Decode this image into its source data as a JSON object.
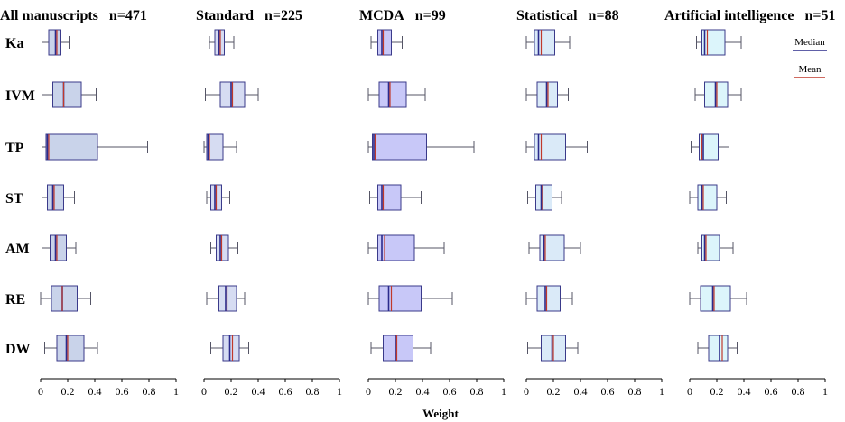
{
  "chart_data": {
    "type": "boxplot",
    "xlabel": "Weight",
    "xlim": [
      0,
      1
    ],
    "xticks": [
      "0",
      "0.2",
      "0.4",
      "0.6",
      "0.8",
      "1"
    ],
    "categories": [
      "Ka",
      "IVM",
      "TP",
      "ST",
      "AM",
      "RE",
      "DW"
    ],
    "legend": {
      "median_label": "Median",
      "mean_label": "Mean",
      "placement": "top-right"
    },
    "colors": {
      "median": "#2b2b8c",
      "mean": "#c0392b",
      "box_stroke": "#3a3a8a",
      "whisker": "#555566"
    },
    "panels": [
      {
        "title": "All manuscripts",
        "n_label": "n=471",
        "box_fill": "#c9d3ea",
        "boxes": [
          {
            "min": 0.01,
            "q1": 0.06,
            "median": 0.11,
            "mean": 0.12,
            "q3": 0.15,
            "max": 0.21
          },
          {
            "min": 0.01,
            "q1": 0.09,
            "median": 0.17,
            "mean": 0.17,
            "q3": 0.3,
            "max": 0.41
          },
          {
            "min": 0.01,
            "q1": 0.04,
            "median": 0.05,
            "mean": 0.06,
            "q3": 0.42,
            "max": 0.79
          },
          {
            "min": 0.01,
            "q1": 0.05,
            "median": 0.09,
            "mean": 0.1,
            "q3": 0.17,
            "max": 0.25
          },
          {
            "min": 0.01,
            "q1": 0.07,
            "median": 0.11,
            "mean": 0.12,
            "q3": 0.19,
            "max": 0.26
          },
          {
            "min": 0.0,
            "q1": 0.08,
            "median": 0.16,
            "mean": 0.16,
            "q3": 0.27,
            "max": 0.37
          },
          {
            "min": 0.03,
            "q1": 0.12,
            "median": 0.19,
            "mean": 0.2,
            "q3": 0.32,
            "max": 0.42
          }
        ]
      },
      {
        "title": "Standard",
        "n_label": "n=225",
        "box_fill": "#d6dcf2",
        "boxes": [
          {
            "min": 0.04,
            "q1": 0.08,
            "median": 0.11,
            "mean": 0.12,
            "q3": 0.15,
            "max": 0.22
          },
          {
            "min": 0.01,
            "q1": 0.12,
            "median": 0.2,
            "mean": 0.21,
            "q3": 0.3,
            "max": 0.4
          },
          {
            "min": 0.0,
            "q1": 0.02,
            "median": 0.03,
            "mean": 0.04,
            "q3": 0.14,
            "max": 0.24
          },
          {
            "min": 0.02,
            "q1": 0.05,
            "median": 0.08,
            "mean": 0.09,
            "q3": 0.13,
            "max": 0.19
          },
          {
            "min": 0.05,
            "q1": 0.09,
            "median": 0.12,
            "mean": 0.13,
            "q3": 0.18,
            "max": 0.25
          },
          {
            "min": 0.02,
            "q1": 0.11,
            "median": 0.16,
            "mean": 0.17,
            "q3": 0.24,
            "max": 0.3
          },
          {
            "min": 0.05,
            "q1": 0.14,
            "median": 0.19,
            "mean": 0.21,
            "q3": 0.26,
            "max": 0.33
          }
        ]
      },
      {
        "title": "MCDA",
        "n_label": "n=99",
        "box_fill": "#c8c8f8",
        "boxes": [
          {
            "min": 0.02,
            "q1": 0.07,
            "median": 0.1,
            "mean": 0.11,
            "q3": 0.17,
            "max": 0.25
          },
          {
            "min": 0.0,
            "q1": 0.08,
            "median": 0.15,
            "mean": 0.16,
            "q3": 0.28,
            "max": 0.42
          },
          {
            "min": 0.0,
            "q1": 0.03,
            "median": 0.04,
            "mean": 0.05,
            "q3": 0.43,
            "max": 0.78
          },
          {
            "min": 0.01,
            "q1": 0.07,
            "median": 0.1,
            "mean": 0.11,
            "q3": 0.24,
            "max": 0.39
          },
          {
            "min": 0.0,
            "q1": 0.07,
            "median": 0.1,
            "mean": 0.12,
            "q3": 0.34,
            "max": 0.56
          },
          {
            "min": 0.0,
            "q1": 0.08,
            "median": 0.15,
            "mean": 0.17,
            "q3": 0.39,
            "max": 0.62
          },
          {
            "min": 0.02,
            "q1": 0.11,
            "median": 0.2,
            "mean": 0.21,
            "q3": 0.33,
            "max": 0.46
          }
        ]
      },
      {
        "title": "Statistical",
        "n_label": "n=88",
        "box_fill": "#daeaf8",
        "boxes": [
          {
            "min": 0.0,
            "q1": 0.06,
            "median": 0.09,
            "mean": 0.11,
            "q3": 0.21,
            "max": 0.32
          },
          {
            "min": 0.0,
            "q1": 0.08,
            "median": 0.15,
            "mean": 0.16,
            "q3": 0.23,
            "max": 0.31
          },
          {
            "min": 0.0,
            "q1": 0.06,
            "median": 0.09,
            "mean": 0.11,
            "q3": 0.29,
            "max": 0.45
          },
          {
            "min": 0.01,
            "q1": 0.07,
            "median": 0.11,
            "mean": 0.12,
            "q3": 0.19,
            "max": 0.26
          },
          {
            "min": 0.02,
            "q1": 0.1,
            "median": 0.13,
            "mean": 0.14,
            "q3": 0.28,
            "max": 0.4
          },
          {
            "min": 0.0,
            "q1": 0.08,
            "median": 0.14,
            "mean": 0.15,
            "q3": 0.25,
            "max": 0.34
          },
          {
            "min": 0.01,
            "q1": 0.11,
            "median": 0.19,
            "mean": 0.2,
            "q3": 0.29,
            "max": 0.38
          }
        ]
      },
      {
        "title": "Artificial intelligence",
        "n_label": "n=51",
        "box_fill": "#dcf5fb",
        "boxes": [
          {
            "min": 0.05,
            "q1": 0.09,
            "median": 0.11,
            "mean": 0.13,
            "q3": 0.26,
            "max": 0.38
          },
          {
            "min": 0.04,
            "q1": 0.11,
            "median": 0.19,
            "mean": 0.2,
            "q3": 0.28,
            "max": 0.38
          },
          {
            "min": 0.01,
            "q1": 0.07,
            "median": 0.1,
            "mean": 0.09,
            "q3": 0.21,
            "max": 0.29
          },
          {
            "min": 0.0,
            "q1": 0.06,
            "median": 0.09,
            "mean": 0.1,
            "q3": 0.2,
            "max": 0.27
          },
          {
            "min": 0.06,
            "q1": 0.09,
            "median": 0.11,
            "mean": 0.12,
            "q3": 0.22,
            "max": 0.32
          },
          {
            "min": 0.0,
            "q1": 0.08,
            "median": 0.17,
            "mean": 0.18,
            "q3": 0.3,
            "max": 0.42
          },
          {
            "min": 0.06,
            "q1": 0.14,
            "median": 0.22,
            "mean": 0.24,
            "q3": 0.28,
            "max": 0.35
          }
        ]
      }
    ]
  }
}
